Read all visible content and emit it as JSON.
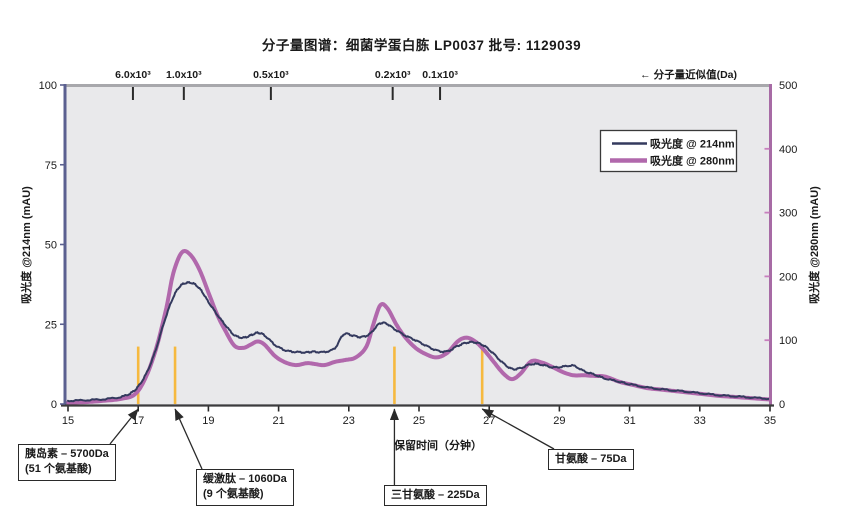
{
  "title": "分子量图谱：细菌学蛋白胨 LP0037  批号: 1129039",
  "colors": {
    "series_214": "#343a5e",
    "series_280": "#b168ac",
    "marker": "#f6b93f",
    "plot_bg": "#e9e9eb",
    "spine_left": "#5b6090",
    "spine_right": "#a76ba5",
    "spine_top": "#a8a8ac",
    "spine_bottom": "#3c3c3e",
    "arrow": "#2a2a2a"
  },
  "chart_data": {
    "type": "line",
    "title": "分子量图谱：细菌学蛋白胨 LP0037  批号: 1129039",
    "x_axis": {
      "label": "保留时间（分钟）",
      "range": [
        15,
        35
      ],
      "ticks": [
        15,
        17,
        19,
        21,
        23,
        25,
        27,
        29,
        31,
        33,
        35
      ]
    },
    "left_axis": {
      "label": "吸光度 @214nm (mAU)",
      "range": [
        0,
        100
      ],
      "ticks": [
        0,
        25,
        50,
        75,
        100
      ]
    },
    "right_axis": {
      "label": "吸光度 @280nm (mAU)",
      "range": [
        0,
        500
      ],
      "ticks": [
        0,
        100,
        200,
        300,
        400,
        500
      ]
    },
    "top_scale": {
      "label": "← 分子量近似值(Da)",
      "ticks": [
        {
          "label": "6.0x10³",
          "min": 16.85
        },
        {
          "label": "1.0x10³",
          "min": 18.3
        },
        {
          "label": "0.5x10³",
          "min": 20.78
        },
        {
          "label": "0.2x10³",
          "min": 24.25
        },
        {
          "label": "0.1x10³",
          "min": 25.6
        }
      ]
    },
    "legend": [
      {
        "label": "吸光度 @ 214nm",
        "color": "#343a5e",
        "width": 2
      },
      {
        "label": "吸光度 @ 280nm",
        "color": "#b168ac",
        "width": 4
      }
    ],
    "grid": false,
    "legend_position": "upper right",
    "series": [
      {
        "name": "吸光度 @ 280nm",
        "axis": "right",
        "color": "#b168ac",
        "width": 4,
        "noisy": false,
        "points": [
          [
            15,
            2
          ],
          [
            15.5,
            3
          ],
          [
            16,
            5
          ],
          [
            16.5,
            8
          ],
          [
            16.9,
            15
          ],
          [
            17.2,
            40
          ],
          [
            17.5,
            85
          ],
          [
            17.8,
            150
          ],
          [
            18,
            205
          ],
          [
            18.25,
            238
          ],
          [
            18.5,
            233
          ],
          [
            18.75,
            210
          ],
          [
            19,
            175
          ],
          [
            19.25,
            140
          ],
          [
            19.5,
            113
          ],
          [
            19.75,
            91
          ],
          [
            20,
            88
          ],
          [
            20.2,
            93
          ],
          [
            20.4,
            98
          ],
          [
            20.6,
            93
          ],
          [
            20.9,
            75
          ],
          [
            21.2,
            65
          ],
          [
            21.5,
            61
          ],
          [
            21.8,
            64
          ],
          [
            22,
            63
          ],
          [
            22.3,
            61
          ],
          [
            22.6,
            66
          ],
          [
            22.9,
            69
          ],
          [
            23.2,
            73
          ],
          [
            23.5,
            90
          ],
          [
            23.7,
            125
          ],
          [
            23.9,
            155
          ],
          [
            24.1,
            150
          ],
          [
            24.35,
            125
          ],
          [
            24.6,
            105
          ],
          [
            24.9,
            88
          ],
          [
            25.2,
            78
          ],
          [
            25.5,
            73
          ],
          [
            25.8,
            80
          ],
          [
            26.1,
            98
          ],
          [
            26.35,
            104
          ],
          [
            26.6,
            98
          ],
          [
            26.85,
            85
          ],
          [
            27.1,
            68
          ],
          [
            27.4,
            48
          ],
          [
            27.65,
            39
          ],
          [
            27.9,
            48
          ],
          [
            28.2,
            67
          ],
          [
            28.5,
            65
          ],
          [
            28.8,
            58
          ],
          [
            29.1,
            50
          ],
          [
            29.4,
            45
          ],
          [
            29.7,
            45
          ],
          [
            30,
            44
          ],
          [
            30.3,
            43
          ],
          [
            30.7,
            35
          ],
          [
            31,
            31
          ],
          [
            31.5,
            25
          ],
          [
            32,
            22
          ],
          [
            32.5,
            19
          ],
          [
            33,
            16
          ],
          [
            33.5,
            13
          ],
          [
            34,
            11
          ],
          [
            34.5,
            9
          ],
          [
            35,
            7
          ]
        ]
      },
      {
        "name": "吸光度 @ 214nm",
        "axis": "left",
        "color": "#343a5e",
        "width": 2,
        "noisy": true,
        "points": [
          [
            15,
            1
          ],
          [
            15.5,
            1.2
          ],
          [
            16,
            1.5
          ],
          [
            16.5,
            2.2
          ],
          [
            16.8,
            3.5
          ],
          [
            17,
            5.5
          ],
          [
            17.25,
            10
          ],
          [
            17.5,
            17
          ],
          [
            17.75,
            26
          ],
          [
            18,
            33.5
          ],
          [
            18.2,
            37
          ],
          [
            18.4,
            38
          ],
          [
            18.6,
            37.6
          ],
          [
            18.8,
            35.5
          ],
          [
            19,
            32
          ],
          [
            19.25,
            28
          ],
          [
            19.5,
            24.5
          ],
          [
            19.75,
            21.5
          ],
          [
            20,
            20.8
          ],
          [
            20.2,
            21.5
          ],
          [
            20.4,
            22.3
          ],
          [
            20.6,
            21.5
          ],
          [
            20.9,
            18.5
          ],
          [
            21.2,
            16.8
          ],
          [
            21.5,
            16.3
          ],
          [
            21.8,
            16.2
          ],
          [
            22,
            16.4
          ],
          [
            22.3,
            16.3
          ],
          [
            22.6,
            17.5
          ],
          [
            22.85,
            21.8
          ],
          [
            23.1,
            21.5
          ],
          [
            23.35,
            21
          ],
          [
            23.6,
            22
          ],
          [
            23.85,
            25
          ],
          [
            24.05,
            25.3
          ],
          [
            24.3,
            23.5
          ],
          [
            24.6,
            21.5
          ],
          [
            24.9,
            20
          ],
          [
            25.2,
            18.3
          ],
          [
            25.5,
            16.8
          ],
          [
            25.8,
            16.5
          ],
          [
            26.1,
            18.2
          ],
          [
            26.35,
            19.2
          ],
          [
            26.6,
            19.3
          ],
          [
            26.85,
            18.3
          ],
          [
            27.1,
            16
          ],
          [
            27.4,
            12.8
          ],
          [
            27.65,
            11
          ],
          [
            27.9,
            11.3
          ],
          [
            28.2,
            12.5
          ],
          [
            28.5,
            12.3
          ],
          [
            28.8,
            11.5
          ],
          [
            29.1,
            11.7
          ],
          [
            29.4,
            12
          ],
          [
            29.7,
            10.3
          ],
          [
            30,
            9.2
          ],
          [
            30.3,
            8
          ],
          [
            30.7,
            7
          ],
          [
            31,
            6.2
          ],
          [
            31.5,
            5.2
          ],
          [
            32,
            4.5
          ],
          [
            32.5,
            4
          ],
          [
            33,
            3.4
          ],
          [
            33.5,
            2.8
          ],
          [
            34,
            2.4
          ],
          [
            34.5,
            2
          ],
          [
            35,
            1.6
          ]
        ]
      }
    ],
    "markers": {
      "color": "#f6b93f",
      "height_left_units": 18,
      "positions_min": [
        17.0,
        18.05,
        24.3,
        26.8
      ]
    },
    "annotations": [
      {
        "lines": [
          "胰岛素 – 5700Da",
          "(51 个氨基酸)"
        ],
        "target_min": 17.0
      },
      {
        "lines": [
          "缓激肽 – 1060Da",
          "(9 个氨基酸)"
        ],
        "target_min": 18.05
      },
      {
        "lines": [
          "三甘氨酸 – 225Da"
        ],
        "target_min": 24.3
      },
      {
        "lines": [
          "甘氨酸 – 75Da"
        ],
        "target_min": 26.8
      }
    ]
  }
}
